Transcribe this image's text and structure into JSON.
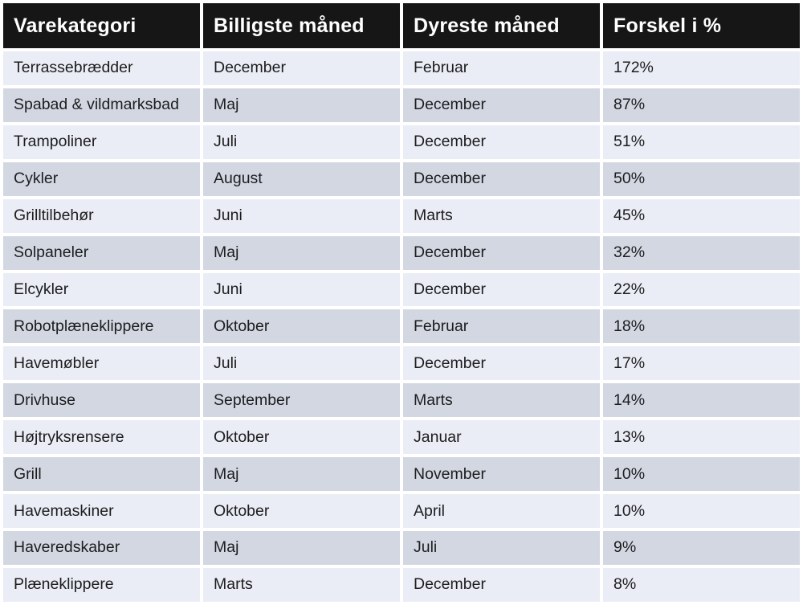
{
  "chart_data": {
    "type": "table",
    "columns": [
      "Varekategori",
      "Billigste måned",
      "Dyreste måned",
      "Forskel i %"
    ],
    "rows": [
      [
        "Terrassebrædder",
        "December",
        "Februar",
        "172%"
      ],
      [
        "Spabad & vildmarksbad",
        "Maj",
        "December",
        "87%"
      ],
      [
        "Trampoliner",
        "Juli",
        "December",
        "51%"
      ],
      [
        "Cykler",
        "August",
        "December",
        "50%"
      ],
      [
        "Grilltilbehør",
        "Juni",
        "Marts",
        "45%"
      ],
      [
        "Solpaneler",
        "Maj",
        "December",
        "32%"
      ],
      [
        "Elcykler",
        "Juni",
        "December",
        "22%"
      ],
      [
        "Robotplæneklippere",
        "Oktober",
        "Februar",
        "18%"
      ],
      [
        "Havemøbler",
        "Juli",
        "December",
        "17%"
      ],
      [
        "Drivhuse",
        "September",
        "Marts",
        "14%"
      ],
      [
        "Højtryksrensere",
        "Oktober",
        "Januar",
        "13%"
      ],
      [
        "Grill",
        "Maj",
        "November",
        "10%"
      ],
      [
        "Havemaskiner",
        "Oktober",
        "April",
        "10%"
      ],
      [
        "Haveredskaber",
        "Maj",
        "Juli",
        "9%"
      ],
      [
        "Plæneklippere",
        "Marts",
        "December",
        "8%"
      ]
    ]
  },
  "colors": {
    "header_bg": "#161616",
    "header_text": "#ffffff",
    "row_light": "#eaedf5",
    "row_dark": "#d2d7e2",
    "cell_text": "#1d1d1f",
    "gap": "#ffffff"
  }
}
